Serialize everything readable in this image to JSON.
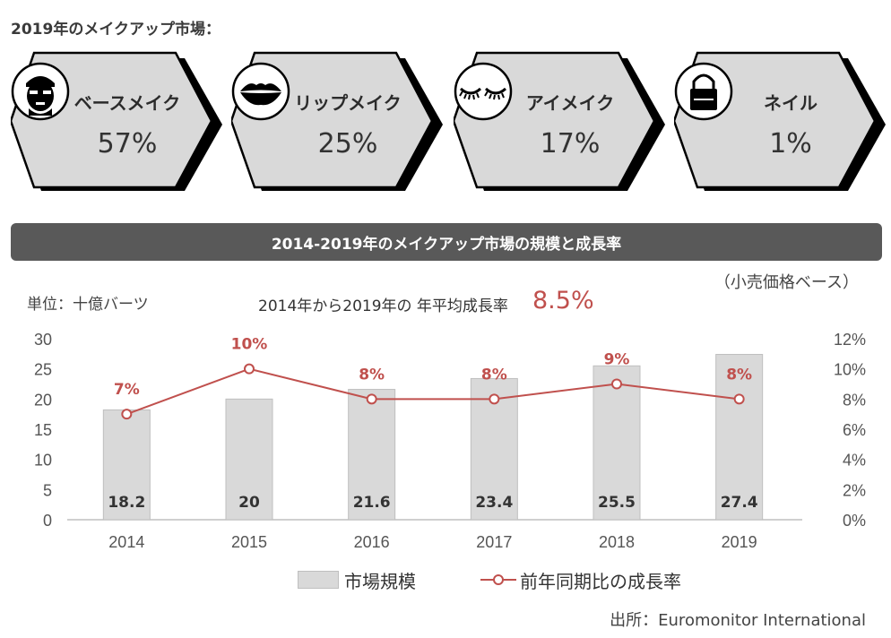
{
  "heading": "2019年のメイクアップ市場：",
  "cards": [
    {
      "icon": "face-mask-icon",
      "label": "ベースメイク",
      "value": "57%"
    },
    {
      "icon": "lips-icon",
      "label": "リップメイク",
      "value": "25%"
    },
    {
      "icon": "eyelashes-icon",
      "label": "アイメイク",
      "value": "17%"
    },
    {
      "icon": "nail-polish-icon",
      "label": "ネイル",
      "value": "1%"
    }
  ],
  "banner": "2014-2019年のメイクアップ市場の規模と成長率",
  "basis": "（小売価格ベース）",
  "unit": "単位：十億バーツ",
  "cagr_label": "2014年から2019年の 年平均成長率",
  "cagr_value": "8.5%",
  "legend": {
    "bar": "市場規模",
    "line": "前年同期比の成長率"
  },
  "source": "出所：Euromonitor International",
  "colors": {
    "bar": "#d9d9d9",
    "line": "#c0504d",
    "card": "#d9d9d9"
  },
  "chart_data": {
    "type": "bar",
    "categories": [
      "2014",
      "2015",
      "2016",
      "2017",
      "2018",
      "2019"
    ],
    "series": [
      {
        "name": "市場規模",
        "type": "bar",
        "axis": "left",
        "values": [
          18.2,
          20,
          21.6,
          23.4,
          25.5,
          27.4
        ],
        "labels": [
          "18.2",
          "20",
          "21.6",
          "23.4",
          "25.5",
          "27.4"
        ]
      },
      {
        "name": "前年同期比の成長率",
        "type": "line",
        "axis": "right",
        "values": [
          7,
          10,
          8,
          8,
          9,
          8
        ],
        "labels": [
          "7%",
          "10%",
          "8%",
          "8%",
          "9%",
          "8%"
        ]
      }
    ],
    "ylim_left": [
      0,
      30
    ],
    "yticks_left": [
      "0",
      "5",
      "10",
      "15",
      "20",
      "25",
      "30"
    ],
    "ylim_right": [
      0,
      12
    ],
    "yticks_right": [
      "0%",
      "2%",
      "4%",
      "6%",
      "8%",
      "10%",
      "12%"
    ],
    "legend_position": "bottom",
    "grid": false
  }
}
